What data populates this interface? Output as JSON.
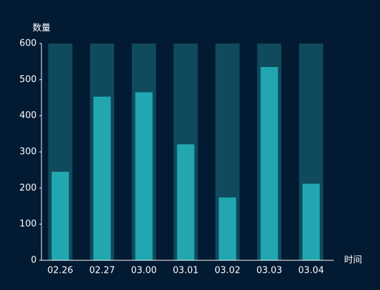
{
  "chart_data": {
    "type": "bar",
    "y_label": "数量",
    "x_label": "时间",
    "categories": [
      "02.26",
      "02.27",
      "03.00",
      "03.01",
      "03.02",
      "03.03",
      "03.04"
    ],
    "values": [
      245,
      453,
      465,
      321,
      174,
      535,
      212
    ],
    "color": "#22a7b0",
    "background_color": "#0f4a5d",
    "ylim": [
      0,
      600
    ],
    "yticks": [
      0,
      100,
      200,
      300,
      400,
      500,
      600
    ]
  }
}
